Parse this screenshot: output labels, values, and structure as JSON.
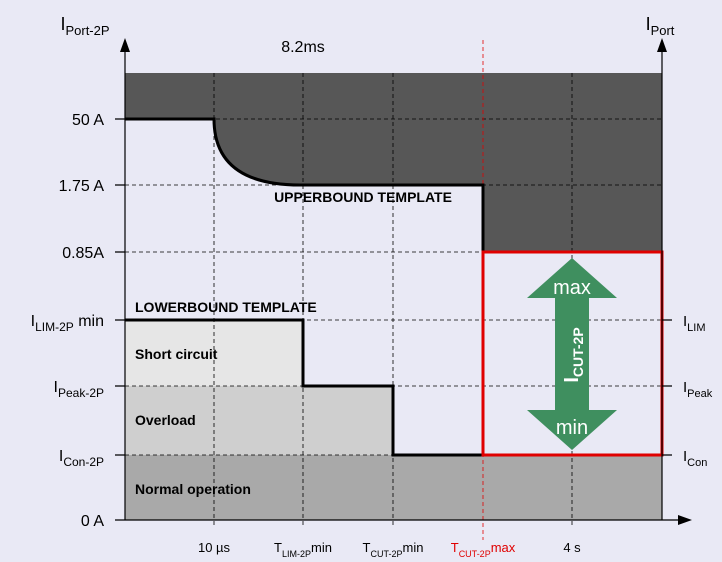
{
  "axes": {
    "left_label": {
      "main": "I",
      "sub": "Port-2P"
    },
    "right_label": {
      "main": "I",
      "sub": "Port"
    },
    "top_note": "8.2ms"
  },
  "left_levels": [
    {
      "main": "50 A"
    },
    {
      "main": "1.75 A"
    },
    {
      "main": "0.85A"
    },
    {
      "main": "I",
      "sub": "LIM-2P",
      "suffix": " min"
    },
    {
      "main": "I",
      "sub": "Peak-2P"
    },
    {
      "main": "I",
      "sub": "Con-2P"
    },
    {
      "main": "0 A"
    }
  ],
  "right_levels": [
    {
      "main": "I",
      "sub": "LIM"
    },
    {
      "main": "I",
      "sub": "Peak"
    },
    {
      "main": "I",
      "sub": "Con"
    }
  ],
  "time_labels": [
    {
      "main": "10 µs"
    },
    {
      "main": "T",
      "sub": "LIM-2P",
      "suffix": "min"
    },
    {
      "main": "T",
      "sub": "CUT-2P",
      "suffix": "min"
    },
    {
      "main": "T",
      "sub": "CUT-2P",
      "suffix": "max"
    },
    {
      "main": "4 s"
    }
  ],
  "regions": {
    "upper": "UPPERBOUND TEMPLATE",
    "lower": "LOWERBOUND TEMPLATE",
    "short": "Short circuit",
    "overload": "Overload",
    "normal": "Normal operation"
  },
  "arrow": {
    "max": "max",
    "min": "min",
    "label": {
      "main": "I",
      "sub": "CUT-2P"
    }
  }
}
